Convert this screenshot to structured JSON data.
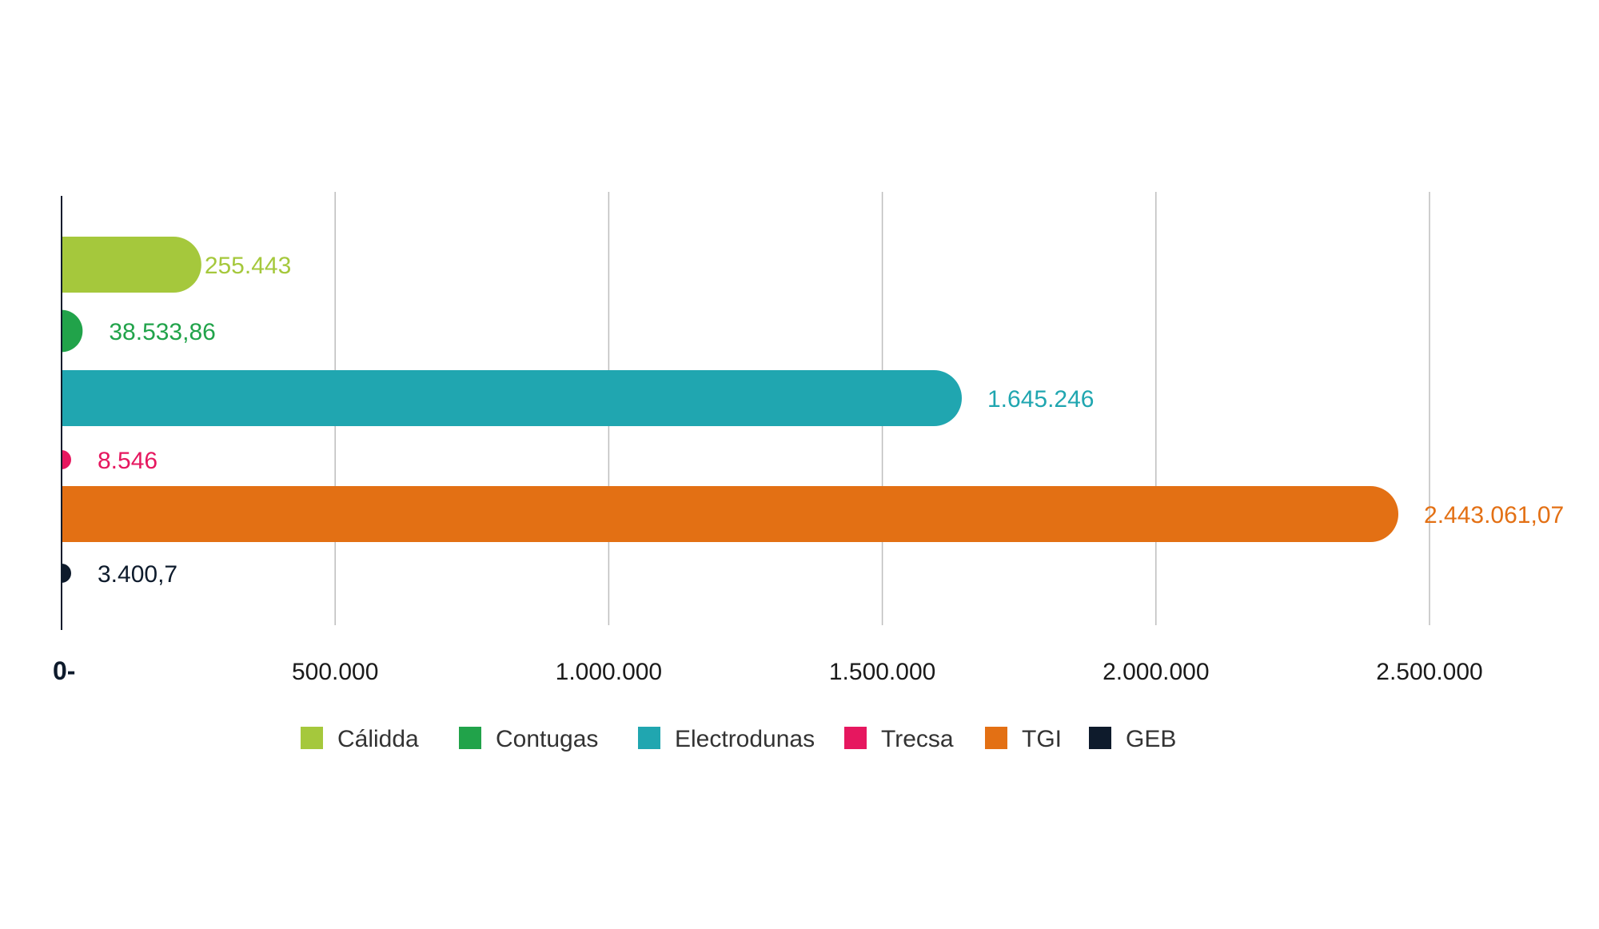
{
  "chart_data": {
    "type": "bar",
    "orientation": "horizontal",
    "categories": [
      "Cálidda",
      "Contugas",
      "Electrodunas",
      "Trecsa",
      "TGI",
      "GEB"
    ],
    "values": [
      255443,
      38533.86,
      1645246,
      8546,
      2443061.07,
      3400.7
    ],
    "value_labels": [
      "255.443",
      "38.533,86",
      "1.645.246",
      "8.546",
      "2.443.061,07",
      "3.400,7"
    ],
    "colors": [
      "#a5c83c",
      "#21a34a",
      "#20a6b0",
      "#e6175f",
      "#e37014",
      "#0e1b2c"
    ],
    "xlim": [
      0,
      2500000
    ],
    "x_ticks": [
      0,
      500000,
      1000000,
      1500000,
      2000000,
      2500000
    ],
    "x_tick_labels": [
      "0-",
      "500.000",
      "1.000.000",
      "1.500.000",
      "2.000.000",
      "2.500.000"
    ],
    "grid": "vertical",
    "legend": {
      "position": "bottom",
      "entries": [
        "Cálidda",
        "Contugas",
        "Electrodunas",
        "Trecsa",
        "TGI",
        "GEB"
      ]
    }
  }
}
